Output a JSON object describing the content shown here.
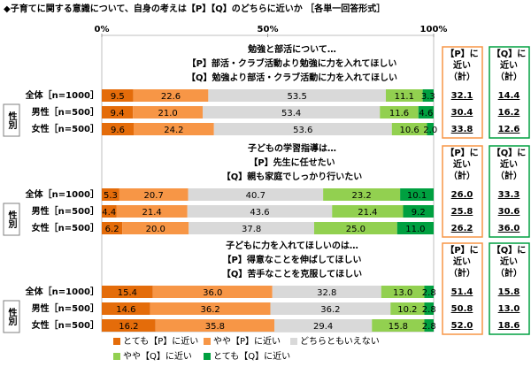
{
  "chart_data": {
    "type": "stacked-bar-horizontal",
    "title": "◆子育てに関する意識について、自身の考えは【P】【Q】のどちらに近いか ［各単一回答形式］",
    "xlim": [
      0,
      100
    ],
    "xticks": [
      {
        "value": 0,
        "label": "0%"
      },
      {
        "value": 50,
        "label": "50%"
      },
      {
        "value": 100,
        "label": "100%"
      }
    ],
    "side_label": "性別",
    "p_total_header": [
      "【P】に",
      "近い",
      "（計）"
    ],
    "q_total_header": [
      "【Q】に",
      "近い",
      "（計）"
    ],
    "series": [
      {
        "name": "とても【P】に近い",
        "color": "#e46c0a"
      },
      {
        "name": "やや【P】に近い",
        "color": "#f79646"
      },
      {
        "name": "どちらともいえない",
        "color": "#d9d9d9"
      },
      {
        "name": "やや【Q】に近い",
        "color": "#92d050"
      },
      {
        "name": "とても【Q】に近い",
        "color": "#00a040"
      }
    ],
    "groups": [
      {
        "question": [
          "勉強と部活について…",
          "【P】部活・クラブ活動より勉強に力を入れてほしい",
          "【Q】勉強より部活・クラブ活動に力を入れてほしい"
        ],
        "categories": [
          "全体［n=1000］",
          "男性［n=500］",
          "女性［n=500］"
        ],
        "values": [
          [
            9.5,
            22.6,
            53.5,
            11.1,
            3.3
          ],
          [
            9.4,
            21,
            53.4,
            11.6,
            4.6
          ],
          [
            9.6,
            24.2,
            53.6,
            10.6,
            2
          ]
        ],
        "value_labels": [
          [
            "9.5",
            "22.6",
            "53.5",
            "11.1",
            "3.3"
          ],
          [
            "9.4",
            "21.0",
            "53.4",
            "11.6",
            "4.6"
          ],
          [
            "9.6",
            "24.2",
            "53.6",
            "10.6",
            "2.0"
          ]
        ],
        "p_total": [
          "32.1",
          "30.4",
          "33.8"
        ],
        "q_total": [
          "14.4",
          "16.2",
          "12.6"
        ]
      },
      {
        "question": [
          "子どもの学習指導は…",
          "【P】先生に任せたい",
          "【Q】親も家庭でしっかり行いたい"
        ],
        "categories": [
          "全体［n=1000］",
          "男性［n=500］",
          "女性［n=500］"
        ],
        "values": [
          [
            5.3,
            20.7,
            40.7,
            23.2,
            10.1
          ],
          [
            4.4,
            21.4,
            43.6,
            21.4,
            9.2
          ],
          [
            6.2,
            20,
            37.8,
            25,
            11
          ]
        ],
        "value_labels": [
          [
            "5.3",
            "20.7",
            "40.7",
            "23.2",
            "10.1"
          ],
          [
            "4.4",
            "21.4",
            "43.6",
            "21.4",
            "9.2"
          ],
          [
            "6.2",
            "20.0",
            "37.8",
            "25.0",
            "11.0"
          ]
        ],
        "p_total": [
          "26.0",
          "25.8",
          "26.2"
        ],
        "q_total": [
          "33.3",
          "30.6",
          "36.0"
        ]
      },
      {
        "question": [
          "子どもに力を入れてほしいのは…",
          "【P】得意なことを伸ばしてほしい",
          "【Q】苦手なことを克服してほしい"
        ],
        "categories": [
          "全体［n=1000］",
          "男性［n=500］",
          "女性［n=500］"
        ],
        "values": [
          [
            15.4,
            36,
            32.8,
            13,
            2.8
          ],
          [
            14.6,
            36.2,
            36.2,
            10.2,
            2.8
          ],
          [
            16.2,
            35.8,
            29.4,
            15.8,
            2.8
          ]
        ],
        "value_labels": [
          [
            "15.4",
            "36.0",
            "32.8",
            "13.0",
            "2.8"
          ],
          [
            "14.6",
            "36.2",
            "36.2",
            "10.2",
            "2.8"
          ],
          [
            "16.2",
            "35.8",
            "29.4",
            "15.8",
            "2.8"
          ]
        ],
        "p_total": [
          "51.4",
          "50.8",
          "52.0"
        ],
        "q_total": [
          "15.8",
          "13.0",
          "18.6"
        ]
      }
    ]
  }
}
